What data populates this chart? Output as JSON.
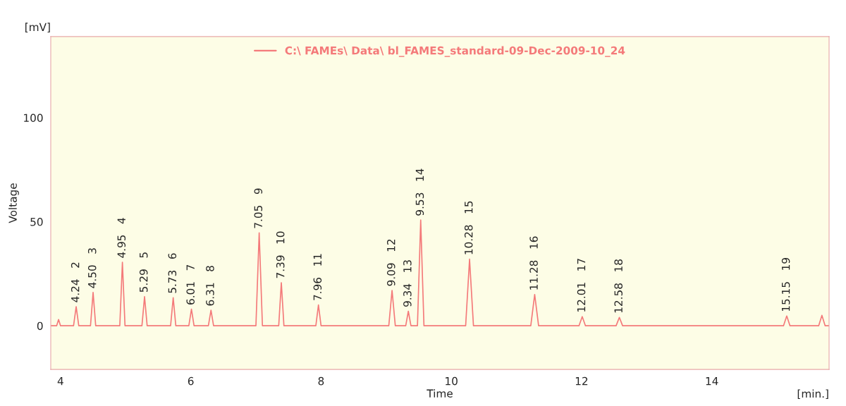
{
  "chart_data": {
    "type": "line",
    "xlabel": "Time",
    "ylabel": "Voltage",
    "xlim": [
      3.85,
      15.8
    ],
    "xticks": [
      4,
      6,
      8,
      10,
      12,
      14
    ],
    "ylim": [
      -21,
      139
    ],
    "yticks": [
      0,
      50,
      100
    ],
    "grid": false,
    "legend": "top",
    "marker": "none",
    "line_style": "solid",
    "series": [
      {
        "name": "C:\\ FAMEs\\ Data\\ bl_FAMES_standard-09-Dec-2009-10_24",
        "color": "#f47a7a",
        "x": [
          3.85,
          3.88,
          3.89,
          3.9,
          3.94,
          3.95,
          3.97,
          4.0,
          4.2,
          4.24,
          4.28,
          4.46,
          4.5,
          4.54,
          4.91,
          4.95,
          4.99,
          5.25,
          5.29,
          5.33,
          5.69,
          5.73,
          5.77,
          5.97,
          6.01,
          6.05,
          6.27,
          6.31,
          6.35,
          7.0,
          7.05,
          7.1,
          7.35,
          7.39,
          7.43,
          7.92,
          7.96,
          8.0,
          9.04,
          9.09,
          9.14,
          9.3,
          9.34,
          9.38,
          9.48,
          9.53,
          9.58,
          10.22,
          10.28,
          10.34,
          11.22,
          11.28,
          11.34,
          11.96,
          12.01,
          12.06,
          12.53,
          12.58,
          12.63,
          15.1,
          15.15,
          15.2,
          15.64,
          15.69,
          15.74,
          15.8
        ],
        "values": [
          0,
          0,
          null,
          0,
          0,
          null,
          3,
          0,
          0,
          9.2,
          0,
          0,
          16,
          0,
          0,
          30.5,
          0,
          0,
          14,
          0,
          0,
          13.5,
          0,
          0,
          8,
          0,
          0,
          7.5,
          0,
          0,
          44.7,
          0,
          0,
          20.7,
          0,
          0,
          10,
          0,
          0,
          17,
          0,
          0,
          7,
          0,
          0,
          50.8,
          0,
          0,
          32,
          0,
          0,
          15,
          0,
          0,
          4.4,
          0,
          0,
          4,
          0,
          0,
          4.7,
          0,
          0,
          5,
          0,
          0
        ]
      }
    ],
    "annotations": [
      "[mV]",
      "[min.]",
      {
        "text": "4.24   2",
        "x": 4.24,
        "y": 9.2
      },
      {
        "text": "4.50   3",
        "x": 4.5,
        "y": 16
      },
      {
        "text": "4.95   4",
        "x": 4.95,
        "y": 30.5
      },
      {
        "text": "5.29   5",
        "x": 5.29,
        "y": 14
      },
      {
        "text": "5.73   6",
        "x": 5.73,
        "y": 13.5
      },
      {
        "text": "6.01   7",
        "x": 6.01,
        "y": 8
      },
      {
        "text": "6.31   8",
        "x": 6.31,
        "y": 7.5
      },
      {
        "text": "7.05   9",
        "x": 7.05,
        "y": 44.7
      },
      {
        "text": "7.39   10",
        "x": 7.39,
        "y": 20.7
      },
      {
        "text": "7.96   11",
        "x": 7.96,
        "y": 10
      },
      {
        "text": "9.09   12",
        "x": 9.09,
        "y": 17
      },
      {
        "text": "9.34   13",
        "x": 9.34,
        "y": 7
      },
      {
        "text": "9.53   14",
        "x": 9.53,
        "y": 50.8
      },
      {
        "text": "10.28   15",
        "x": 10.28,
        "y": 32
      },
      {
        "text": "11.28   16",
        "x": 11.28,
        "y": 15
      },
      {
        "text": "12.01   17",
        "x": 12.01,
        "y": 4.4
      },
      {
        "text": "12.58   18",
        "x": 12.58,
        "y": 4
      },
      {
        "text": "15.15   19",
        "x": 15.15,
        "y": 4.7
      }
    ]
  }
}
